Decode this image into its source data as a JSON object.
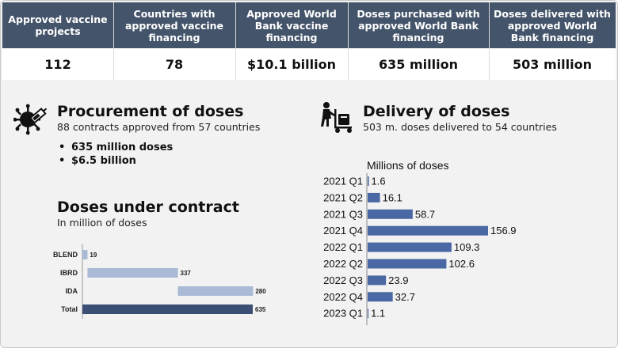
{
  "stats": [
    {
      "label": "Approved vaccine projects",
      "value": "112"
    },
    {
      "label": "Countries with approved vaccine financing",
      "value": "78"
    },
    {
      "label": "Approved World Bank vaccine financing",
      "value": "$10.1 billion"
    },
    {
      "label": "Doses purchased with approved World Bank financing",
      "value": "635 million"
    },
    {
      "label": "Doses delivered with approved World Bank financing",
      "value": "503 million"
    }
  ],
  "procurement": {
    "title": "Procurement of doses",
    "subtitle": "88 contracts approved from 57 countries",
    "bullets": [
      "635 million doses",
      "$6.5 billion"
    ],
    "icon": "virus-syringe-icon"
  },
  "delivery": {
    "title": "Delivery of doses",
    "subtitle": "503 m. doses delivered to 54 countries",
    "icon": "delivery-cart-icon"
  },
  "contract": {
    "title": "Doses under contract",
    "subtitle": "In million of doses"
  },
  "chart_data": [
    {
      "type": "bar",
      "orientation": "horizontal",
      "style": "waterfall",
      "categories": [
        "BLEND",
        "IBRD",
        "IDA",
        "Total"
      ],
      "values": [
        19,
        337,
        280,
        635
      ],
      "data_labels": [
        "19",
        "337",
        "280",
        "635"
      ],
      "colors": {
        "component": "#a9b9d6",
        "total": "#3a4f73"
      },
      "title": "",
      "xlabel": "",
      "ylabel": "",
      "grid": false
    },
    {
      "type": "bar",
      "orientation": "horizontal",
      "unit_label": "Millions of doses",
      "categories": [
        "2021 Q1",
        "2021 Q2",
        "2021 Q3",
        "2021 Q4",
        "2022 Q1",
        "2022 Q2",
        "2022 Q3",
        "2022 Q4",
        "2023 Q1"
      ],
      "values": [
        1.6,
        16.1,
        58.7,
        156.9,
        109.3,
        102.6,
        23.9,
        32.7,
        1.1
      ],
      "data_labels": [
        "1.6",
        "16.1",
        "58.7",
        "156.9",
        "109.3",
        "102.6",
        "23.9",
        "32.7",
        "1.1"
      ],
      "color": "#4a68a3",
      "title": "",
      "xlabel": "",
      "ylabel": "",
      "grid": false
    }
  ]
}
